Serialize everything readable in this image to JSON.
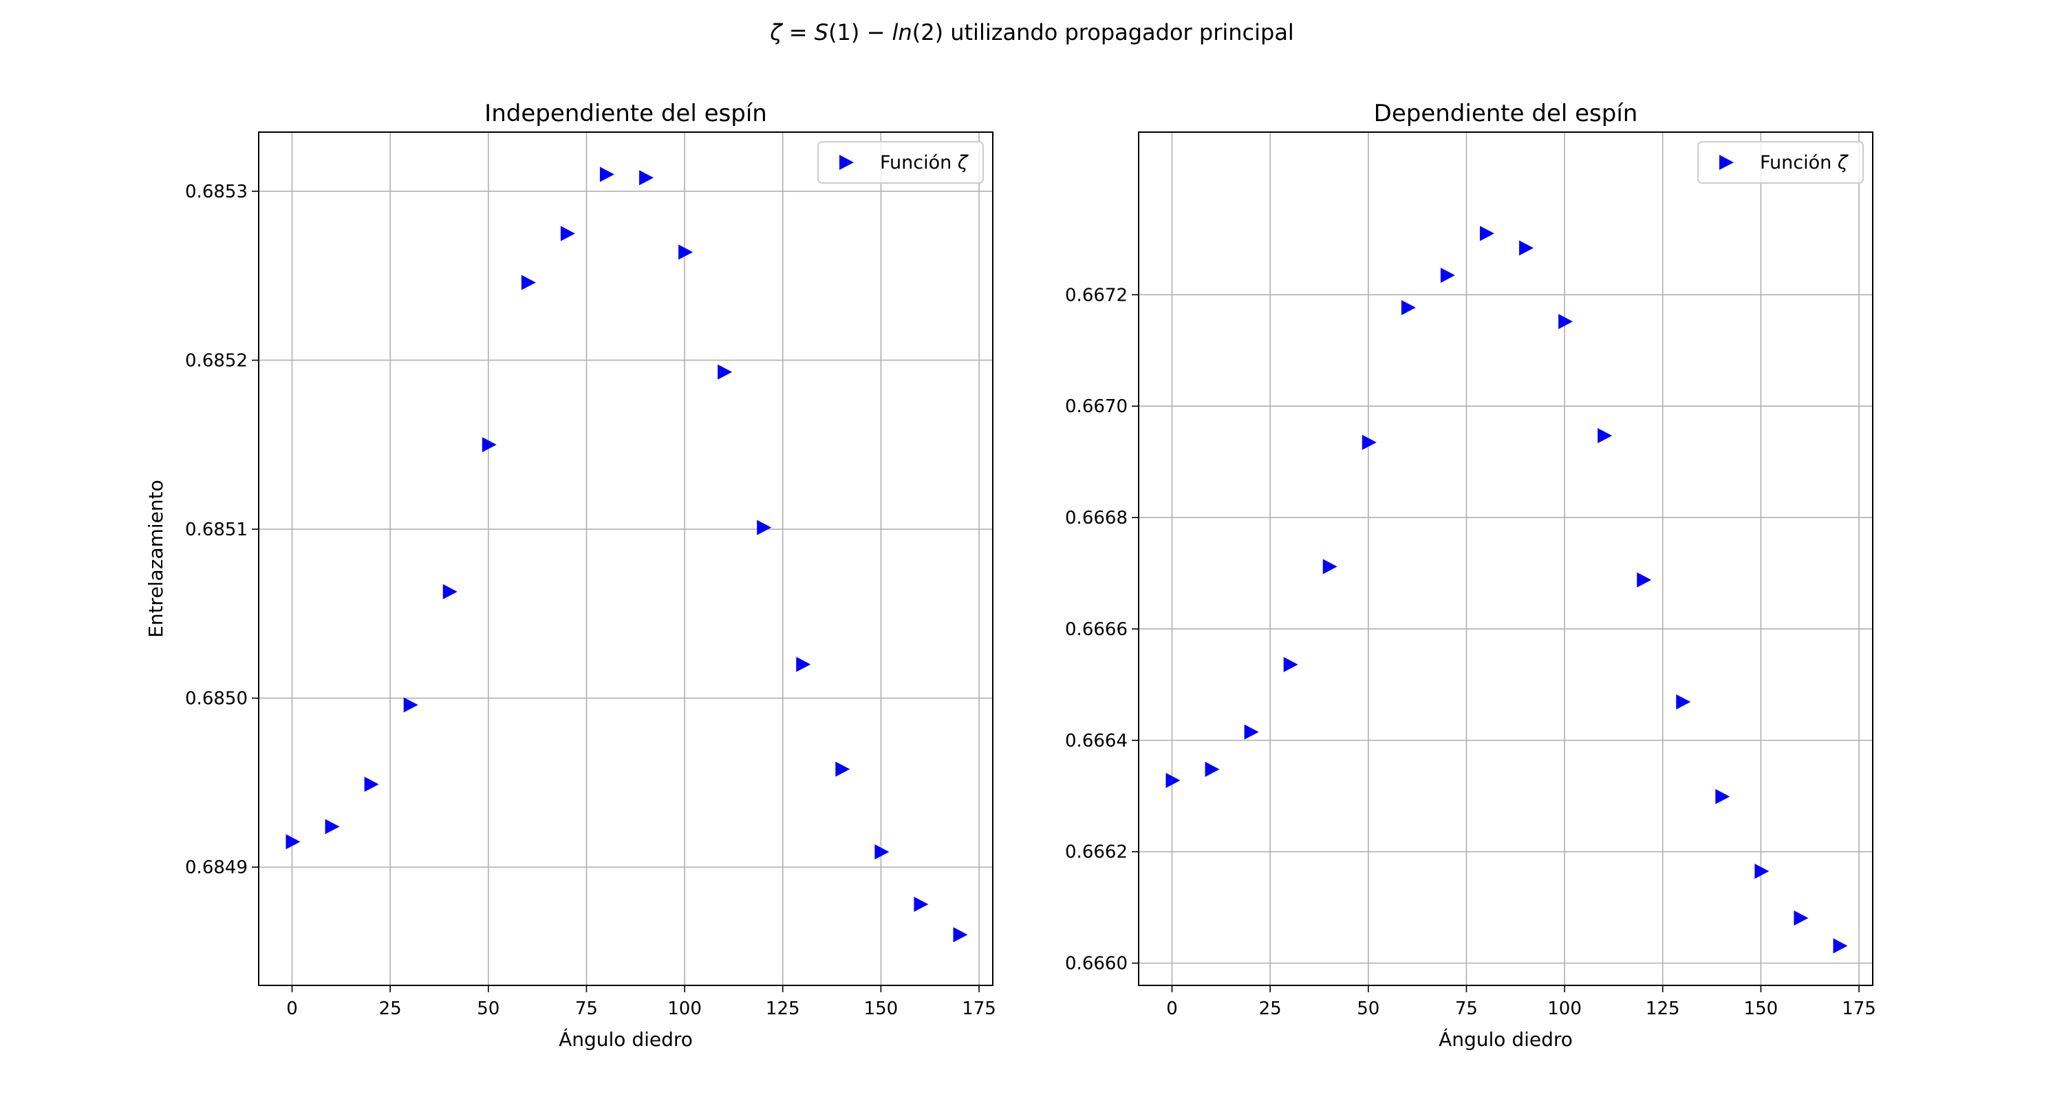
{
  "suptitle": {
    "zeta": "ζ",
    "eq1": " = ",
    "S": "S",
    "mid": "(1) − ",
    "ln": "ln",
    "tail": "(2) utilizando propagador principal"
  },
  "chart_data": [
    {
      "type": "scatter",
      "title": "Independiente del espín",
      "xlabel": "Ángulo diedro",
      "ylabel": "Entrelazamiento",
      "xlim": [
        -8.5,
        178.5
      ],
      "ylim": [
        0.68483,
        0.685335
      ],
      "xticks": [
        0,
        25,
        50,
        75,
        100,
        125,
        150,
        175
      ],
      "yticks": [
        0.6849,
        0.685,
        0.6851,
        0.6852,
        0.6853
      ],
      "ytick_labels": [
        "0.6849",
        "0.6850",
        "0.6851",
        "0.6852",
        "0.6853"
      ],
      "grid": true,
      "legend": {
        "position": "top-right",
        "label": "Función ",
        "label_symbol": "ζ"
      },
      "marker": {
        "shape": "triangle-right",
        "color": "#0000ff"
      },
      "series": [
        {
          "name": "Función ζ",
          "x": [
            0,
            10,
            20,
            30,
            40,
            50,
            60,
            70,
            80,
            90,
            100,
            110,
            120,
            130,
            140,
            150,
            160,
            170
          ],
          "y": [
            0.684915,
            0.684924,
            0.684949,
            0.684996,
            0.685063,
            0.68515,
            0.685246,
            0.685275,
            0.68531,
            0.685308,
            0.685264,
            0.685193,
            0.685101,
            0.68502,
            0.684958,
            0.684909,
            0.684878,
            0.68486
          ]
        }
      ]
    },
    {
      "type": "scatter",
      "title": "Dependiente del espín",
      "xlabel": "Ángulo diedro",
      "ylabel": "",
      "xlim": [
        -8.5,
        178.5
      ],
      "ylim": [
        0.66596,
        0.667492
      ],
      "xticks": [
        0,
        25,
        50,
        75,
        100,
        125,
        150,
        175
      ],
      "yticks": [
        0.666,
        0.6662,
        0.6664,
        0.6666,
        0.6668,
        0.667,
        0.6672
      ],
      "ytick_labels": [
        "0.6660",
        "0.6662",
        "0.6664",
        "0.6666",
        "0.6668",
        "0.6670",
        "0.6672"
      ],
      "grid": true,
      "legend": {
        "position": "top-right",
        "label": "Función ",
        "label_symbol": "ζ"
      },
      "marker": {
        "shape": "triangle-right",
        "color": "#0000ff"
      },
      "series": [
        {
          "name": "Función ζ",
          "x": [
            0,
            10,
            20,
            30,
            40,
            50,
            60,
            70,
            80,
            90,
            100,
            110,
            120,
            130,
            140,
            150,
            160,
            170
          ],
          "y": [
            0.666328,
            0.666348,
            0.666415,
            0.666536,
            0.666712,
            0.666935,
            0.667177,
            0.667235,
            0.66731,
            0.667284,
            0.667152,
            0.666947,
            0.666688,
            0.666469,
            0.666299,
            0.666165,
            0.666081,
            0.666031
          ]
        }
      ]
    }
  ]
}
